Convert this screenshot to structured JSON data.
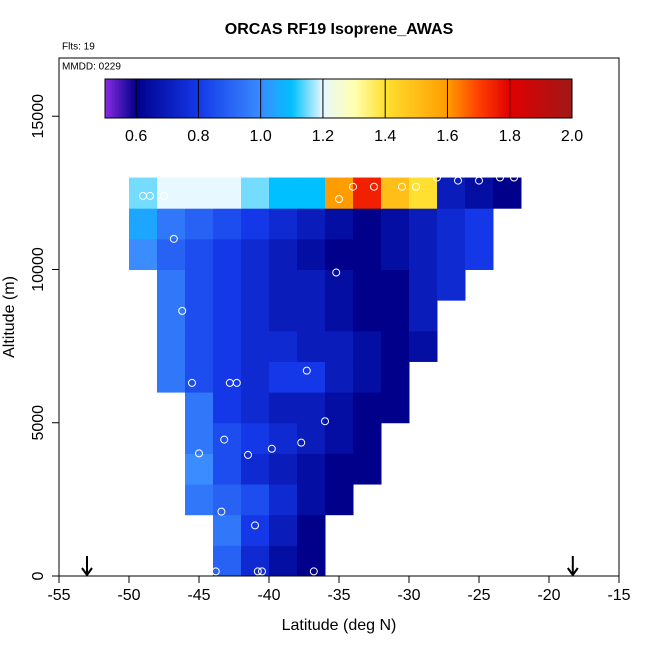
{
  "chart_data": {
    "type": "heatmap",
    "title": "ORCAS RF19 Isoprene_AWAS",
    "notes": [
      "Flts: 19",
      "MMDD: 0229"
    ],
    "xlabel": "Latitude (deg N)",
    "ylabel": "Altitude (m)",
    "xlim": [
      -55,
      -15
    ],
    "ylim": [
      0,
      16900
    ],
    "xticks": [
      -55,
      -50,
      -45,
      -40,
      -35,
      -30,
      -25,
      -20,
      -15
    ],
    "yticks": [
      0,
      5000,
      10000,
      15000
    ],
    "xbins": [
      -50,
      -48,
      -46,
      -44,
      -42,
      -40,
      -38,
      -36,
      -34,
      -32,
      -30,
      -28,
      -26,
      -24,
      -22
    ],
    "ybins": [
      0,
      1000,
      2000,
      3000,
      4000,
      5000,
      6000,
      7000,
      8000,
      9000,
      10000,
      11000,
      12000,
      13000
    ],
    "values": [
      [
        null,
        null,
        null,
        0.9,
        0.75,
        0.65,
        0.6,
        null,
        null,
        null,
        null,
        null,
        null,
        null
      ],
      [
        null,
        null,
        null,
        0.95,
        0.8,
        0.7,
        0.6,
        null,
        null,
        null,
        null,
        null,
        null,
        null
      ],
      [
        null,
        null,
        0.95,
        0.9,
        0.85,
        0.75,
        0.65,
        0.6,
        null,
        null,
        null,
        null,
        null,
        null
      ],
      [
        null,
        null,
        1.0,
        0.85,
        0.75,
        0.7,
        0.65,
        0.6,
        0.6,
        null,
        null,
        null,
        null,
        null
      ],
      [
        null,
        null,
        0.95,
        0.85,
        0.8,
        0.75,
        0.7,
        0.65,
        0.6,
        null,
        null,
        null,
        null,
        null
      ],
      [
        null,
        null,
        0.95,
        0.8,
        0.75,
        0.7,
        0.7,
        0.65,
        0.6,
        0.6,
        null,
        null,
        null,
        null
      ],
      [
        null,
        0.95,
        0.85,
        0.8,
        0.75,
        0.8,
        0.8,
        0.7,
        0.65,
        0.6,
        null,
        null,
        null,
        null
      ],
      [
        null,
        0.95,
        0.85,
        0.8,
        0.75,
        0.75,
        0.7,
        0.7,
        0.65,
        0.6,
        0.65,
        null,
        null,
        null
      ],
      [
        null,
        0.95,
        0.85,
        0.8,
        0.75,
        0.7,
        0.7,
        0.65,
        0.6,
        0.6,
        0.7,
        null,
        null,
        null
      ],
      [
        null,
        0.95,
        0.85,
        0.8,
        0.75,
        0.7,
        0.7,
        0.65,
        0.6,
        0.6,
        0.7,
        0.75,
        null,
        null
      ],
      [
        1.0,
        0.9,
        0.85,
        0.8,
        0.75,
        0.7,
        0.65,
        0.6,
        0.6,
        0.65,
        0.7,
        0.75,
        0.8,
        null
      ],
      [
        1.05,
        0.95,
        0.9,
        0.85,
        0.8,
        0.75,
        0.7,
        0.65,
        0.6,
        0.65,
        0.7,
        0.75,
        0.8,
        null
      ],
      [
        1.15,
        1.2,
        1.2,
        1.2,
        1.15,
        1.1,
        1.1,
        1.6,
        1.75,
        1.5,
        1.4,
        0.7,
        0.65,
        0.6
      ]
    ],
    "points": {
      "x": [
        -49,
        -48.5,
        -47.5,
        -46.8,
        -46.2,
        -35.2,
        -35,
        -34,
        -32.5,
        -30.5,
        -29.5,
        -28,
        -26.5,
        -25,
        -23.5,
        -22.5,
        -45.5,
        -42.8,
        -42.3,
        -37.3,
        -36,
        -43.2,
        -37.7,
        -45,
        -39.8,
        -41.5,
        -43.4,
        -44.5,
        -41,
        -43.8,
        -40.8,
        -40.5,
        -36.8
      ],
      "y": [
        12400,
        12400,
        12400,
        11000,
        8650,
        9900,
        12300,
        12700,
        12700,
        12700,
        12700,
        13000,
        12900,
        12900,
        13000,
        13000,
        6300,
        6300,
        6300,
        6700,
        5050,
        4450,
        4350,
        4000,
        4150,
        3950,
        2100,
        1650,
        1650,
        150,
        150,
        150,
        150
      ]
    },
    "arrows_x": [
      -53,
      -18.3
    ],
    "colorbar": {
      "lim": [
        0.5,
        2.0
      ],
      "ticks": [
        0.6,
        0.8,
        {
          "value": 1,
          "label": "1.0"
        },
        1.2,
        1.4,
        1.6,
        1.8,
        {
          "value": 2,
          "label": "2.0"
        }
      ],
      "colorscale": [
        [
          0.5,
          "#8a2be2"
        ],
        [
          0.6,
          "#00008b"
        ],
        [
          0.8,
          "#1438e8"
        ],
        [
          1.0,
          "#3a8cff"
        ],
        [
          1.1,
          "#00c0ff"
        ],
        [
          1.2,
          "#e8f8ff"
        ],
        [
          1.3,
          "#ffffb0"
        ],
        [
          1.4,
          "#ffe030"
        ],
        [
          1.6,
          "#ff9c00"
        ],
        [
          1.7,
          "#ff4000"
        ],
        [
          1.8,
          "#e00000"
        ],
        [
          2.0,
          "#a01818"
        ]
      ]
    }
  }
}
